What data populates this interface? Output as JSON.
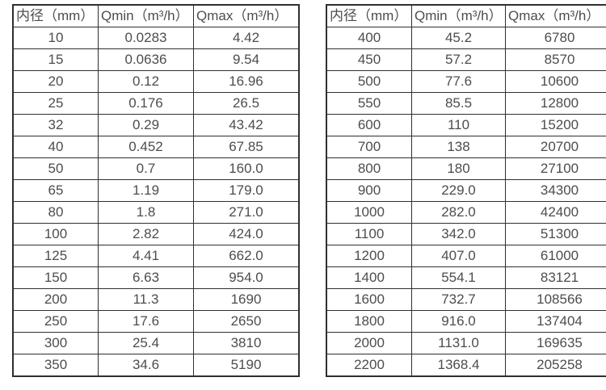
{
  "page": {
    "background_color": "#ffffff",
    "border_color": "#2f2f2f",
    "text_color": "#4d4d4d"
  },
  "chart_data": [
    {
      "type": "table",
      "title": "",
      "columns": [
        "内径（mm）",
        "Qmin（m³/h）",
        "Qmax（m³/h）"
      ],
      "rows": [
        [
          "10",
          "0.0283",
          "4.42"
        ],
        [
          "15",
          "0.0636",
          "9.54"
        ],
        [
          "20",
          "0.12",
          "16.96"
        ],
        [
          "25",
          "0.176",
          "26.5"
        ],
        [
          "32",
          "0.29",
          "43.42"
        ],
        [
          "40",
          "0.452",
          "67.85"
        ],
        [
          "50",
          "0.7",
          "160.0"
        ],
        [
          "65",
          "1.19",
          "179.0"
        ],
        [
          "80",
          "1.8",
          "271.0"
        ],
        [
          "100",
          "2.82",
          "424.0"
        ],
        [
          "125",
          "4.41",
          "662.0"
        ],
        [
          "150",
          "6.63",
          "954.0"
        ],
        [
          "200",
          "11.3",
          "1690"
        ],
        [
          "250",
          "17.6",
          "2650"
        ],
        [
          "300",
          "25.4",
          "3810"
        ],
        [
          "350",
          "34.6",
          "5190"
        ]
      ]
    },
    {
      "type": "table",
      "title": "",
      "columns": [
        "内径（mm）",
        "Qmin（m³/h）",
        "Qmax（m³/h）"
      ],
      "rows": [
        [
          "400",
          "45.2",
          "6780"
        ],
        [
          "450",
          "57.2",
          "8570"
        ],
        [
          "500",
          "77.6",
          "10600"
        ],
        [
          "550",
          "85.5",
          "12800"
        ],
        [
          "600",
          "110",
          "15200"
        ],
        [
          "700",
          "138",
          "20700"
        ],
        [
          "800",
          "180",
          "27100"
        ],
        [
          "900",
          "229.0",
          "34300"
        ],
        [
          "1000",
          "282.0",
          "42400"
        ],
        [
          "1100",
          "342.0",
          "51300"
        ],
        [
          "1200",
          "407.0",
          "61000"
        ],
        [
          "1400",
          "554.1",
          "83121"
        ],
        [
          "1600",
          "732.7",
          "108566"
        ],
        [
          "1800",
          "916.0",
          "137404"
        ],
        [
          "2000",
          "1131.0",
          "169635"
        ],
        [
          "2200",
          "1368.4",
          "205258"
        ]
      ]
    }
  ]
}
